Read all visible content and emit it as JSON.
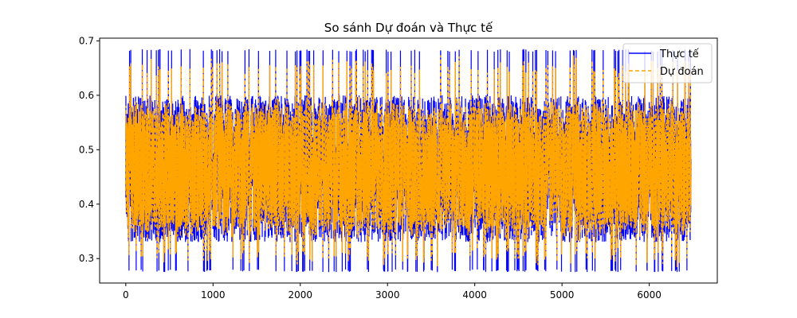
{
  "chart_data": {
    "type": "line",
    "title": "So sánh Dự đoán và Thực tế",
    "xlabel": "",
    "ylabel": "",
    "xlim": [
      -300,
      6780
    ],
    "ylim": [
      0.255,
      0.705
    ],
    "x_ticks": [
      0,
      1000,
      2000,
      3000,
      4000,
      5000,
      6000
    ],
    "y_ticks": [
      0.3,
      0.4,
      0.5,
      0.6,
      0.7
    ],
    "x_tick_labels": [
      "0",
      "1000",
      "2000",
      "3000",
      "4000",
      "5000",
      "6000"
    ],
    "y_tick_labels": [
      "0.3",
      "0.4",
      "0.5",
      "0.6",
      "0.7"
    ],
    "grid": false,
    "legend_position": "top-right",
    "series": [
      {
        "name": "Thực tế",
        "color": "#0000ff",
        "style": "solid",
        "n_points": 6480,
        "min": 0.275,
        "max": 0.685,
        "typical_band": [
          0.33,
          0.6
        ]
      },
      {
        "name": "Dự đoán",
        "color": "#ffa500",
        "style": "dashed",
        "n_points": 6480,
        "min": 0.275,
        "max": 0.685,
        "typical_band": [
          0.34,
          0.605
        ]
      }
    ]
  }
}
